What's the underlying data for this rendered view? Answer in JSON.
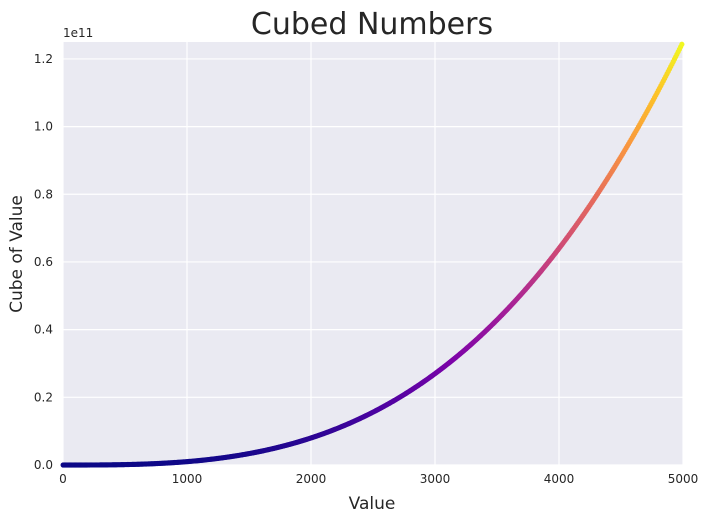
{
  "chart_data": {
    "type": "scatter",
    "title": "Cubed Numbers",
    "xlabel": "Value",
    "ylabel": "Cube of Value",
    "y_offset_label": "1e11",
    "xlim": [
      0,
      5000
    ],
    "ylim": [
      0,
      125000000000.0
    ],
    "grid": true,
    "colormap": "plasma",
    "background_color": "#EAEAF2",
    "grid_color": "#FFFFFF",
    "x_ticks": [
      0,
      1000,
      2000,
      3000,
      4000,
      5000
    ],
    "x_tick_labels": [
      "0",
      "1000",
      "2000",
      "3000",
      "4000",
      "5000"
    ],
    "y_ticks": [
      0,
      20000000000.0,
      40000000000.0,
      60000000000.0,
      80000000000.0,
      100000000000.0,
      120000000000.0
    ],
    "y_tick_labels": [
      "0.0",
      "0.2",
      "0.4",
      "0.6",
      "0.8",
      "1.0",
      "1.2"
    ],
    "series": [
      {
        "function": "y = x^3",
        "x_start": 1,
        "x_end": 5000,
        "sample_points": [
          {
            "x": 1000,
            "y": 1000000000.0
          },
          {
            "x": 2000,
            "y": 8000000000.0
          },
          {
            "x": 3000,
            "y": 27000000000.0
          },
          {
            "x": 4000,
            "y": 64000000000.0
          },
          {
            "x": 5000,
            "y": 125000000000.0
          }
        ]
      }
    ]
  }
}
